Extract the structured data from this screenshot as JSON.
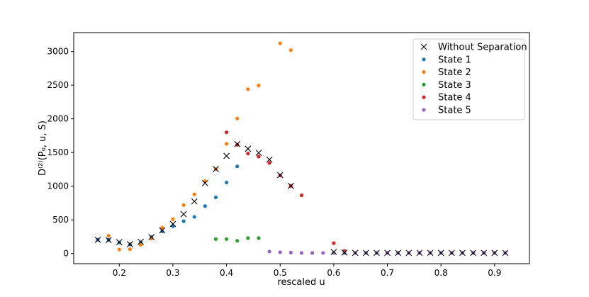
{
  "chart_data": {
    "type": "scatter",
    "xlabel": "rescaled u",
    "ylabel": "D⁽²⁾(P₀, u, S)",
    "xlim": [
      0.115,
      0.965
    ],
    "ylim": [
      -150,
      3280
    ],
    "x_ticks": [
      0.2,
      0.3,
      0.4,
      0.5,
      0.6,
      0.7,
      0.8,
      0.9
    ],
    "y_ticks": [
      0,
      500,
      1000,
      1500,
      2000,
      2500,
      3000
    ],
    "grid": false,
    "legend_position": "top-right",
    "series": [
      {
        "name": "Without Separation",
        "marker": "x",
        "color": "#000000",
        "points": [
          [
            0.16,
            205
          ],
          [
            0.18,
            200
          ],
          [
            0.2,
            170
          ],
          [
            0.22,
            140
          ],
          [
            0.24,
            175
          ],
          [
            0.26,
            245
          ],
          [
            0.28,
            345
          ],
          [
            0.3,
            440
          ],
          [
            0.32,
            585
          ],
          [
            0.34,
            775
          ],
          [
            0.36,
            1045
          ],
          [
            0.38,
            1255
          ],
          [
            0.4,
            1450
          ],
          [
            0.42,
            1625
          ],
          [
            0.44,
            1555
          ],
          [
            0.46,
            1495
          ],
          [
            0.48,
            1395
          ],
          [
            0.5,
            1165
          ],
          [
            0.52,
            1005
          ],
          [
            0.6,
            25
          ],
          [
            0.62,
            15
          ],
          [
            0.64,
            10
          ],
          [
            0.66,
            10
          ],
          [
            0.68,
            10
          ],
          [
            0.7,
            10
          ],
          [
            0.72,
            10
          ],
          [
            0.74,
            10
          ],
          [
            0.76,
            10
          ],
          [
            0.78,
            10
          ],
          [
            0.8,
            10
          ],
          [
            0.82,
            10
          ],
          [
            0.84,
            10
          ],
          [
            0.86,
            10
          ],
          [
            0.88,
            10
          ],
          [
            0.9,
            10
          ],
          [
            0.92,
            10
          ]
        ]
      },
      {
        "name": "State 1",
        "marker": "o",
        "color": "#1f77b4",
        "points": [
          [
            0.16,
            205
          ],
          [
            0.18,
            205
          ],
          [
            0.2,
            165
          ],
          [
            0.22,
            135
          ],
          [
            0.24,
            165
          ],
          [
            0.26,
            245
          ],
          [
            0.28,
            330
          ],
          [
            0.3,
            405
          ],
          [
            0.32,
            480
          ],
          [
            0.34,
            545
          ],
          [
            0.36,
            705
          ],
          [
            0.38,
            835
          ],
          [
            0.4,
            1055
          ],
          [
            0.42,
            1295
          ]
        ]
      },
      {
        "name": "State 2",
        "marker": "o",
        "color": "#ff7f0e",
        "points": [
          [
            0.18,
            265
          ],
          [
            0.2,
            60
          ],
          [
            0.22,
            65
          ],
          [
            0.24,
            130
          ],
          [
            0.26,
            225
          ],
          [
            0.28,
            385
          ],
          [
            0.3,
            510
          ],
          [
            0.32,
            720
          ],
          [
            0.34,
            880
          ],
          [
            0.36,
            1075
          ],
          [
            0.38,
            1255
          ],
          [
            0.4,
            1630
          ],
          [
            0.42,
            2005
          ],
          [
            0.44,
            2440
          ],
          [
            0.46,
            2495
          ],
          [
            0.5,
            3120
          ],
          [
            0.52,
            3020
          ]
        ]
      },
      {
        "name": "State 3",
        "marker": "o",
        "color": "#2ca02c",
        "points": [
          [
            0.38,
            215
          ],
          [
            0.4,
            215
          ],
          [
            0.42,
            190
          ],
          [
            0.44,
            230
          ],
          [
            0.46,
            230
          ]
        ]
      },
      {
        "name": "State 4",
        "marker": "o",
        "color": "#d62728",
        "points": [
          [
            0.4,
            1800
          ],
          [
            0.42,
            1615
          ],
          [
            0.44,
            1485
          ],
          [
            0.46,
            1440
          ],
          [
            0.48,
            1345
          ],
          [
            0.5,
            1160
          ],
          [
            0.52,
            1005
          ],
          [
            0.54,
            865
          ],
          [
            0.6,
            155
          ],
          [
            0.62,
            40
          ]
        ]
      },
      {
        "name": "State 5",
        "marker": "o",
        "color": "#9467bd",
        "points": [
          [
            0.48,
            30
          ],
          [
            0.5,
            20
          ],
          [
            0.52,
            15
          ],
          [
            0.54,
            10
          ],
          [
            0.56,
            10
          ],
          [
            0.58,
            10
          ],
          [
            0.6,
            10
          ],
          [
            0.62,
            10
          ],
          [
            0.64,
            10
          ],
          [
            0.66,
            10
          ],
          [
            0.68,
            10
          ],
          [
            0.7,
            10
          ],
          [
            0.72,
            10
          ],
          [
            0.74,
            10
          ],
          [
            0.76,
            10
          ],
          [
            0.78,
            10
          ],
          [
            0.8,
            10
          ],
          [
            0.82,
            10
          ],
          [
            0.84,
            10
          ],
          [
            0.86,
            10
          ],
          [
            0.88,
            10
          ],
          [
            0.9,
            10
          ],
          [
            0.92,
            10
          ]
        ]
      }
    ]
  }
}
